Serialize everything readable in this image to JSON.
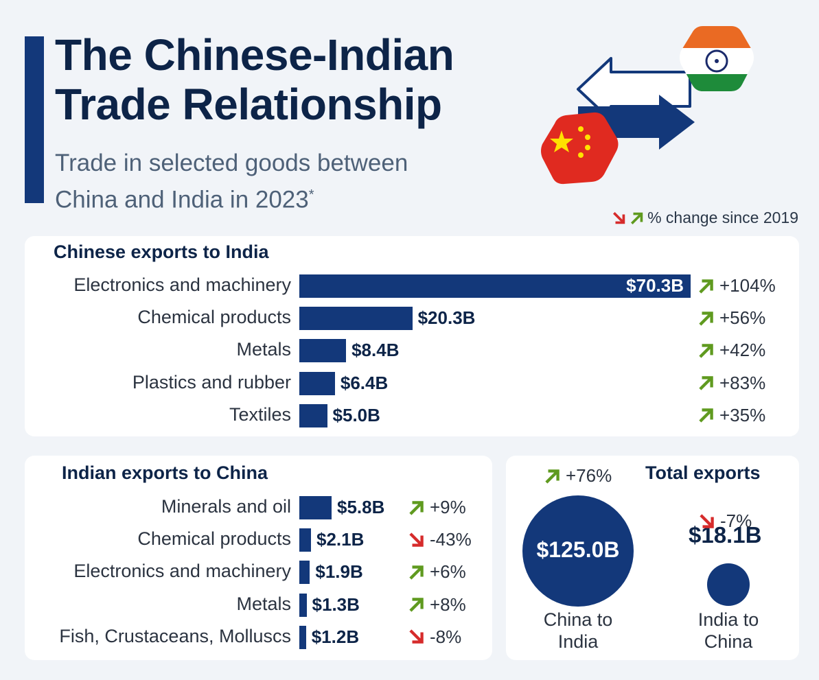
{
  "header": {
    "title_line1": "The Chinese-Indian",
    "title_line2": "Trade Relationship",
    "subtitle_line1": "Trade in selected goods between",
    "subtitle_line2": "China and India in 2023",
    "subtitle_marker": "*"
  },
  "legend": {
    "text": "% change since 2019"
  },
  "colors": {
    "bar": "#13387a",
    "up": "#5f9a1f",
    "down": "#d62b2b"
  },
  "chart_data": [
    {
      "type": "bar",
      "orientation": "horizontal",
      "title": "Chinese exports to India",
      "unit": "USD billions",
      "categories": [
        "Electronics and machinery",
        "Chemical products",
        "Metals",
        "Plastics and rubber",
        "Textiles"
      ],
      "values": [
        70.3,
        20.3,
        8.4,
        6.4,
        5.0
      ],
      "value_labels": [
        "$70.3B",
        "$20.3B",
        "$8.4B",
        "$6.4B",
        "$5.0B"
      ],
      "change_since_2019": [
        "+104%",
        "+56%",
        "+42%",
        "+83%",
        "+35%"
      ],
      "change_direction": [
        "up",
        "up",
        "up",
        "up",
        "up"
      ],
      "xlim": [
        0,
        70.3
      ]
    },
    {
      "type": "bar",
      "orientation": "horizontal",
      "title": "Indian exports to China",
      "unit": "USD billions",
      "categories": [
        "Minerals and oil",
        "Chemical products",
        "Electronics and machinery",
        "Metals",
        "Fish, Crustaceans, Molluscs"
      ],
      "values": [
        5.8,
        2.1,
        1.9,
        1.3,
        1.2
      ],
      "value_labels": [
        "$5.8B",
        "$2.1B",
        "$1.9B",
        "$1.3B",
        "$1.2B"
      ],
      "change_since_2019": [
        "+9%",
        "-43%",
        "+6%",
        "+8%",
        "-8%"
      ],
      "change_direction": [
        "up",
        "down",
        "up",
        "up",
        "down"
      ],
      "xlim": [
        0,
        70.3
      ]
    },
    {
      "type": "bubble",
      "title": "Total exports",
      "categories": [
        "China to India",
        "India to China"
      ],
      "captions": [
        [
          "China to",
          "India"
        ],
        [
          "India to",
          "China"
        ]
      ],
      "values": [
        125.0,
        18.1
      ],
      "value_labels": [
        "$125.0B",
        "$18.1B"
      ],
      "change_since_2019": [
        "+76%",
        "-7%"
      ],
      "change_direction": [
        "up",
        "down"
      ]
    }
  ]
}
